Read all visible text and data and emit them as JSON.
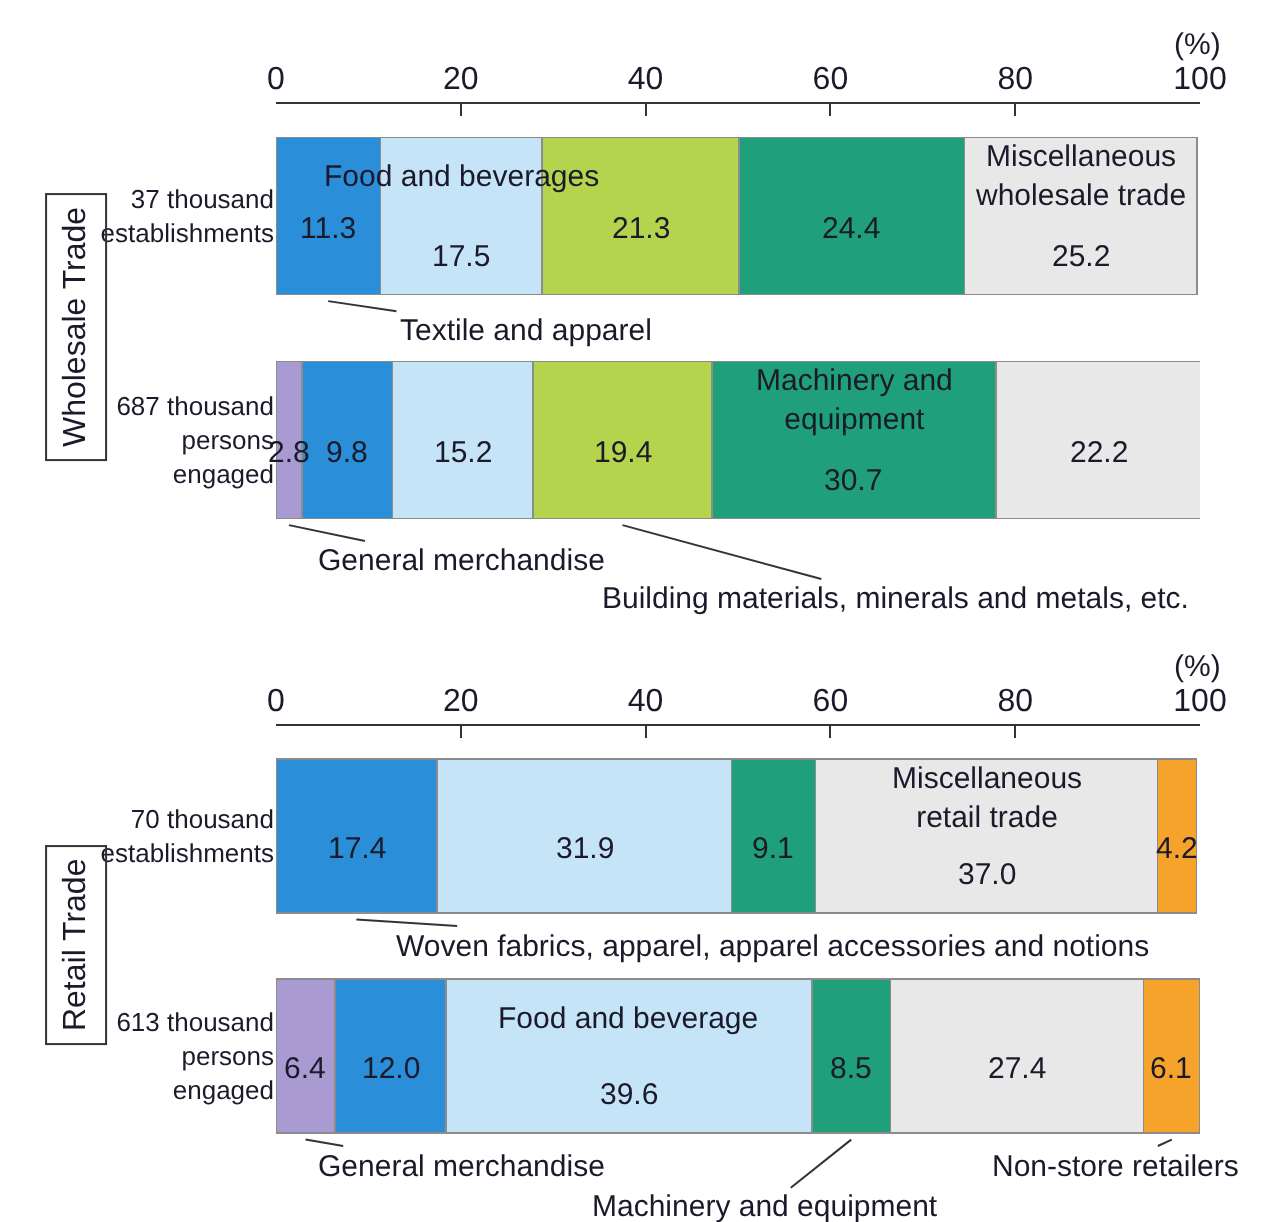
{
  "chart_data": [
    {
      "type": "bar",
      "orientation": "horizontal",
      "stacked": true,
      "ylabel": "Wholesale Trade",
      "xlabel": "(%)",
      "categories": [
        "37 thousand establishments",
        "687 thousand persons engaged"
      ],
      "xlim": [
        0,
        100
      ],
      "xticks": [
        0,
        20,
        40,
        60,
        80,
        100
      ],
      "series": [
        {
          "name": "General merchandise",
          "color": "#a99bd2",
          "values": [
            null,
            2.8
          ],
          "value_labels": [
            null,
            "2.8"
          ]
        },
        {
          "name": "Textile and apparel",
          "color": "#2a8fd8",
          "values": [
            11.3,
            9.8
          ],
          "value_labels": [
            "11.3",
            "9.8"
          ]
        },
        {
          "name": "Food and beverages",
          "color": "#c6e4f8",
          "values": [
            17.5,
            15.2
          ],
          "value_labels": [
            "17.5",
            "15.2"
          ]
        },
        {
          "name": "Building materials, minerals and metals, etc.",
          "color": "#b3d44c",
          "values": [
            21.3,
            19.4
          ],
          "value_labels": [
            "21.3",
            "19.4"
          ]
        },
        {
          "name": "Machinery and equipment",
          "color": "#20a07a",
          "values": [
            24.4,
            30.7
          ],
          "value_labels": [
            "24.4",
            "30.7"
          ]
        },
        {
          "name": "Miscellaneous wholesale trade",
          "color": "#e8e8e8",
          "values": [
            25.2,
            22.2
          ],
          "value_labels": [
            "25.2",
            "22.2"
          ]
        }
      ]
    },
    {
      "type": "bar",
      "orientation": "horizontal",
      "stacked": true,
      "ylabel": "Retail Trade",
      "xlabel": "(%)",
      "categories": [
        "70 thousand establishments",
        "613 thousand persons engaged"
      ],
      "xlim": [
        0,
        100
      ],
      "xticks": [
        0,
        20,
        40,
        60,
        80,
        100
      ],
      "series": [
        {
          "name": "General merchandise",
          "color": "#a99bd2",
          "values": [
            null,
            6.4
          ],
          "value_labels": [
            null,
            "6.4"
          ]
        },
        {
          "name": "Woven fabrics, apparel, apparel accessories and notions",
          "color": "#2a8fd8",
          "values": [
            17.4,
            12.0
          ],
          "value_labels": [
            "17.4",
            "12.0"
          ]
        },
        {
          "name": "Food and beverage",
          "color": "#c6e4f8",
          "values": [
            31.9,
            39.6
          ],
          "value_labels": [
            "31.9",
            "39.6"
          ]
        },
        {
          "name": "Machinery and equipment",
          "color": "#20a07a",
          "values": [
            9.1,
            8.5
          ],
          "value_labels": [
            "9.1",
            "8.5"
          ]
        },
        {
          "name": "Miscellaneous retail trade",
          "color": "#e8e8e8",
          "values": [
            37.0,
            27.4
          ],
          "value_labels": [
            "37.0",
            "27.4"
          ]
        },
        {
          "name": "Non-store retailers",
          "color": "#f5a32a",
          "values": [
            4.2,
            6.1
          ],
          "value_labels": [
            "4.2",
            "6.1"
          ]
        }
      ]
    }
  ]
}
